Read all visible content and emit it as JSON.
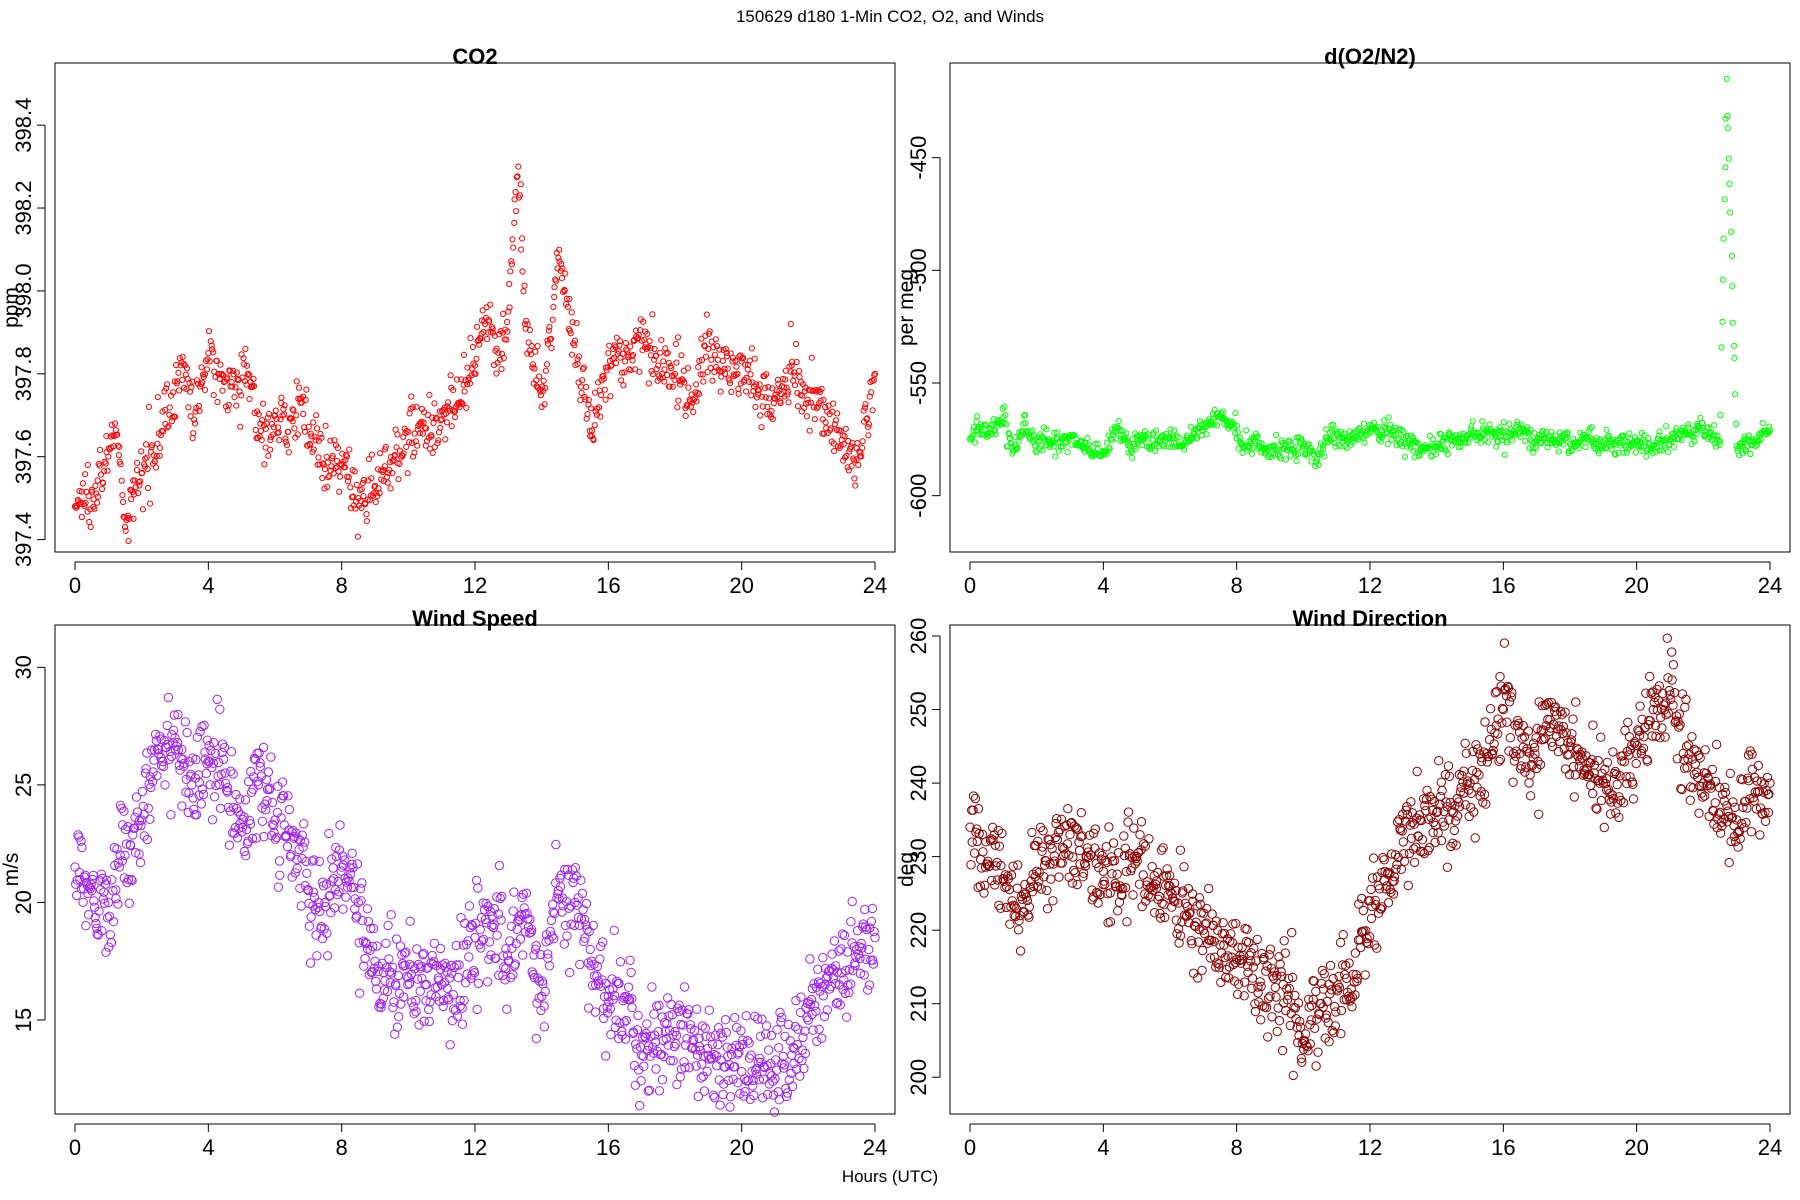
{
  "figure": {
    "title": "150629   d180   1-Min CO2, O2, and Winds",
    "xlabel": "Hours (UTC)"
  },
  "chart_data": [
    {
      "type": "scatter",
      "title": "CO2",
      "xlabel": "",
      "ylabel": "ppm",
      "color": "#ff0000",
      "marker": "open-circle-small",
      "xlim": [
        -0.6,
        24.6
      ],
      "ylim": [
        397.37,
        398.55
      ],
      "xticks": [
        0,
        4,
        8,
        12,
        16,
        20,
        24
      ],
      "yticks": [
        397.4,
        397.6,
        397.8,
        398.0,
        398.2,
        398.4
      ],
      "ytick_labels": [
        "397.4",
        "397.6",
        "397.8",
        "398.0",
        "398.2",
        "398.4"
      ],
      "series": [
        {
          "x": [
            0,
            0.5,
            1,
            1.2,
            1.5,
            2,
            3.3,
            3.6,
            4,
            4.3,
            4.7,
            5.2,
            5.6,
            6,
            6.4,
            6.7,
            7.5,
            8,
            8.5,
            9,
            10,
            10.5,
            11,
            11.5,
            12,
            12.3,
            12.7,
            13,
            13.3,
            13.5,
            14,
            14.5,
            15,
            15.5,
            16,
            16.5,
            17,
            17.5,
            18,
            18.5,
            19,
            19.5,
            20,
            20.5,
            21,
            21.5,
            22,
            22.5,
            23,
            23.5,
            24
          ],
          "y": [
            397.48,
            397.52,
            397.6,
            397.68,
            397.43,
            397.56,
            397.82,
            397.68,
            397.85,
            397.8,
            397.78,
            397.8,
            397.64,
            397.7,
            397.66,
            397.74,
            397.57,
            397.58,
            397.5,
            397.53,
            397.66,
            397.67,
            397.69,
            397.73,
            397.82,
            397.92,
            397.85,
            397.95,
            398.3,
            397.92,
            397.72,
            398.08,
            397.88,
            397.65,
            397.85,
            397.83,
            397.88,
            397.82,
            397.8,
            397.75,
            397.86,
            397.8,
            397.83,
            397.75,
            397.74,
            397.82,
            397.73,
            397.72,
            397.64,
            397.58,
            397.8
          ]
        }
      ]
    },
    {
      "type": "scatter",
      "title": "d(O2/N2)",
      "xlabel": "",
      "ylabel": "per meg",
      "color": "#00ff00",
      "marker": "open-circle-small",
      "xlim": [
        -0.6,
        24.6
      ],
      "ylim": [
        -625,
        -408
      ],
      "xticks": [
        0,
        4,
        8,
        12,
        16,
        20,
        24
      ],
      "yticks": [
        -600,
        -550,
        -500,
        -450
      ],
      "ytick_labels": [
        "-600",
        "-550",
        "-500",
        "-450"
      ],
      "series": [
        {
          "x": [
            0,
            0.3,
            0.6,
            1,
            1.3,
            1.6,
            1.8,
            3.3,
            3.6,
            4,
            4.4,
            4.8,
            5.2,
            5.6,
            6,
            6.4,
            6.7,
            7.5,
            7.9,
            8.2,
            8.6,
            8.9,
            10,
            10.4,
            10.8,
            11.2,
            11.6,
            12,
            13,
            13.5,
            14,
            14.5,
            15,
            15.5,
            16,
            16.5,
            17,
            17.5,
            18,
            18.5,
            19,
            20,
            20.5,
            21,
            21.5,
            22,
            22.5,
            22.7,
            23,
            23.5,
            24
          ],
          "y": [
            -575,
            -570,
            -572,
            -565,
            -580,
            -568,
            -575,
            -576,
            -580,
            -582,
            -570,
            -578,
            -575,
            -577,
            -574,
            -578,
            -572,
            -565,
            -568,
            -578,
            -574,
            -580,
            -578,
            -585,
            -572,
            -576,
            -574,
            -570,
            -574,
            -580,
            -578,
            -576,
            -574,
            -572,
            -574,
            -570,
            -576,
            -575,
            -577,
            -574,
            -578,
            -576,
            -578,
            -575,
            -573,
            -570,
            -576,
            -415,
            -578,
            -575,
            -571
          ]
        }
      ]
    },
    {
      "type": "scatter",
      "title": "Wind Speed",
      "xlabel": "",
      "ylabel": "m/s",
      "color": "#a020f0",
      "marker": "open-circle",
      "xlim": [
        -0.6,
        24.6
      ],
      "ylim": [
        11.0,
        31.8
      ],
      "xticks": [
        0,
        4,
        8,
        12,
        16,
        20,
        24
      ],
      "yticks": [
        15,
        20,
        25,
        30
      ],
      "ytick_labels": [
        "15",
        "20",
        "25",
        "30"
      ],
      "series": [
        {
          "x": [
            0,
            0.5,
            1,
            1.5,
            2,
            2.5,
            3,
            3.5,
            4,
            4.5,
            5,
            5.5,
            6,
            6.5,
            7,
            7.5,
            8,
            8.5,
            9,
            9.5,
            10,
            10.5,
            11,
            11.5,
            12,
            12.5,
            13,
            13.5,
            14,
            14.5,
            15,
            15.5,
            16,
            16.5,
            17,
            17.5,
            18,
            18.5,
            19,
            19.5,
            20,
            20.5,
            21,
            21.5,
            22,
            22.5,
            23,
            23.5,
            24
          ],
          "y": [
            21.5,
            20.5,
            20,
            22,
            23.5,
            26.5,
            27,
            25,
            26,
            25.5,
            23,
            25,
            23.5,
            23,
            20.5,
            20,
            21.5,
            20,
            17.5,
            17,
            16.8,
            16.5,
            16.5,
            16.8,
            18.5,
            19,
            17.5,
            19.5,
            16,
            20.5,
            20,
            17.5,
            16,
            16,
            13.5,
            14.5,
            14.5,
            13.8,
            13.5,
            13,
            12.8,
            13.2,
            12.5,
            13.5,
            15,
            16.5,
            17,
            17.8,
            18.5
          ]
        }
      ]
    },
    {
      "type": "scatter",
      "title": "Wind Direction",
      "xlabel": "",
      "ylabel": "deg",
      "color": "#8b0000",
      "marker": "open-circle",
      "xlim": [
        -0.6,
        24.6
      ],
      "ylim": [
        195,
        261.5
      ],
      "xticks": [
        0,
        4,
        8,
        12,
        16,
        20,
        24
      ],
      "yticks": [
        200,
        210,
        220,
        230,
        240,
        250,
        260
      ],
      "ytick_labels": [
        "200",
        "210",
        "220",
        "230",
        "240",
        "250",
        "260"
      ],
      "series": [
        {
          "x": [
            0,
            0.5,
            1,
            1.5,
            2,
            2.5,
            3,
            3.5,
            4,
            4.5,
            5,
            5.5,
            6,
            6.5,
            7,
            7.5,
            8,
            8.5,
            9,
            9.5,
            10,
            10.5,
            11,
            11.5,
            12,
            12.5,
            13,
            13.5,
            14,
            14.5,
            15,
            15.5,
            16,
            16.5,
            17,
            17.5,
            18,
            18.5,
            19,
            19.5,
            20,
            20.5,
            21,
            21.5,
            22,
            22.5,
            23,
            23.5,
            24
          ],
          "y": [
            234,
            229,
            227,
            222,
            228,
            229,
            233,
            230,
            228,
            226,
            230,
            226,
            226,
            222,
            220,
            218,
            216,
            215,
            211,
            212,
            205,
            210,
            212,
            214,
            224,
            226,
            232,
            235,
            236,
            236,
            240,
            244,
            250,
            244,
            242,
            248,
            245,
            242,
            240,
            241,
            244,
            250,
            252,
            245,
            240,
            236,
            235,
            238,
            240
          ]
        }
      ]
    }
  ]
}
